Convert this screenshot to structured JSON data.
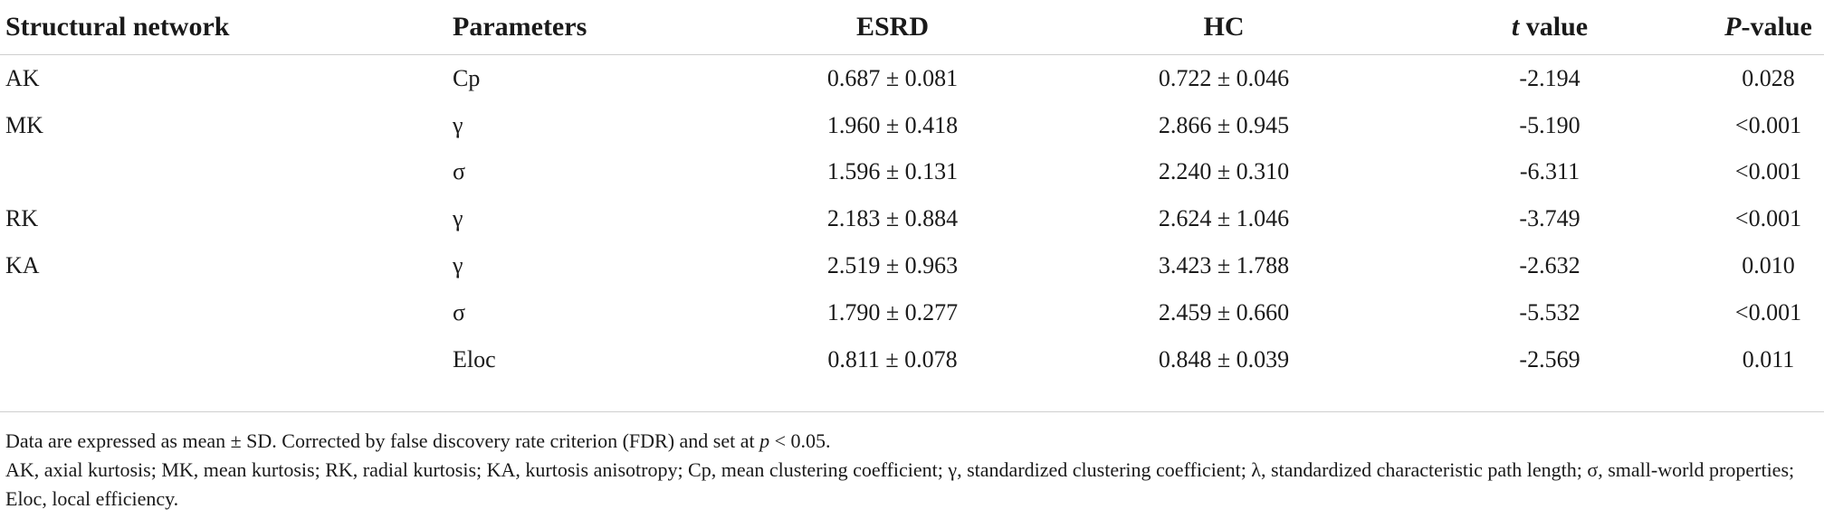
{
  "table": {
    "headers": {
      "structural_network": "Structural network",
      "parameters": "Parameters",
      "esrd": "ESRD",
      "hc": "HC",
      "t_value_italic": "t",
      "t_value_rest": " value",
      "p_value_italic": "P",
      "p_value_rest": "-value"
    },
    "rows": [
      {
        "network": "AK",
        "parameter": "Cp",
        "esrd": "0.687 ± 0.081",
        "hc": "0.722 ± 0.046",
        "t": "-2.194",
        "p": "0.028"
      },
      {
        "network": "MK",
        "parameter": "γ",
        "esrd": "1.960 ± 0.418",
        "hc": "2.866 ± 0.945",
        "t": "-5.190",
        "p": "<0.001"
      },
      {
        "network": "",
        "parameter": "σ",
        "esrd": "1.596 ± 0.131",
        "hc": "2.240 ± 0.310",
        "t": "-6.311",
        "p": "<0.001"
      },
      {
        "network": "RK",
        "parameter": "γ",
        "esrd": "2.183 ± 0.884",
        "hc": "2.624 ± 1.046",
        "t": "-3.749",
        "p": "<0.001"
      },
      {
        "network": "KA",
        "parameter": "γ",
        "esrd": "2.519 ± 0.963",
        "hc": "3.423 ± 1.788",
        "t": "-2.632",
        "p": "0.010"
      },
      {
        "network": "",
        "parameter": "σ",
        "esrd": "1.790 ± 0.277",
        "hc": "2.459 ± 0.660",
        "t": "-5.532",
        "p": "<0.001"
      },
      {
        "network": "",
        "parameter": "Eloc",
        "esrd": "0.811 ± 0.078",
        "hc": "0.848 ± 0.039",
        "t": "-2.569",
        "p": "0.011"
      }
    ]
  },
  "footnotes": {
    "line1_prefix": "Data are expressed as mean ± SD. Corrected by false discovery rate criterion (FDR) and set at ",
    "line1_italic": "p",
    "line1_suffix": " < 0.05.",
    "line2": "AK, axial kurtosis; MK, mean kurtosis; RK, radial kurtosis; KA, kurtosis anisotropy; Cp, mean clustering coefficient; γ, standardized clustering coefficient; λ, standardized characteristic path length; σ, small-world properties; Eloc, local efficiency."
  }
}
